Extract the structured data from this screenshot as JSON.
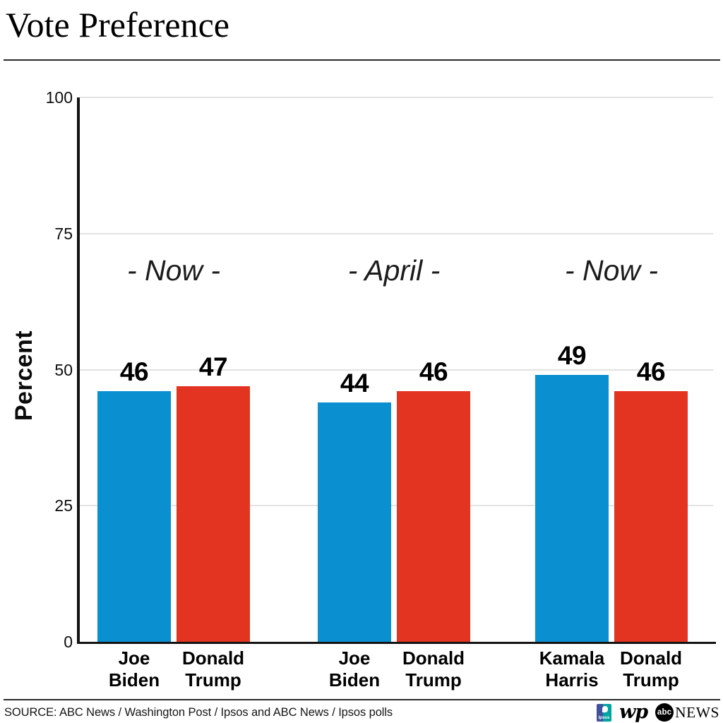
{
  "header": {
    "title": "Vote Preference"
  },
  "chart_data": {
    "type": "bar",
    "title": "Vote Preference",
    "xlabel": "",
    "ylabel": "Percent",
    "ylim": [
      0,
      100
    ],
    "yticks": [
      0,
      25,
      50,
      75,
      100
    ],
    "grid": true,
    "legend": "none",
    "colors": {
      "blue": "#0A8FD0",
      "red": "#E23420"
    },
    "groups": [
      {
        "annotation": "- Now -",
        "bars": [
          {
            "name": "Joe Biden",
            "value": 46,
            "color": "blue"
          },
          {
            "name": "Donald Trump",
            "value": 47,
            "color": "red"
          }
        ]
      },
      {
        "annotation": "- April -",
        "bars": [
          {
            "name": "Joe Biden",
            "value": 44,
            "color": "blue"
          },
          {
            "name": "Donald Trump",
            "value": 46,
            "color": "red"
          }
        ]
      },
      {
        "annotation": "- Now -",
        "bars": [
          {
            "name": "Kamala Harris",
            "value": 49,
            "color": "blue"
          },
          {
            "name": "Donald Trump",
            "value": 46,
            "color": "red"
          }
        ]
      }
    ]
  },
  "footer": {
    "source": "SOURCE: ABC News / Washington Post / Ipsos and ABC News / Ipsos polls",
    "logos": {
      "ipsos": "Ipsos",
      "wp": "wp",
      "abc": "abc",
      "news": "NEWS"
    }
  }
}
